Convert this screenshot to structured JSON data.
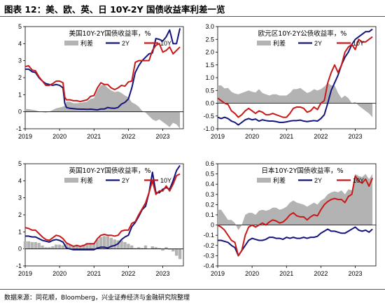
{
  "figure": {
    "title": "图表 12：美、欧、英、日 10Y-2Y 国债收益率利差一览",
    "source": "数据来源：同花顺，Bloomberg，兴业证券经济与金融研究院整理"
  },
  "colors": {
    "spread": "#b3b3b3",
    "y2": "#14147a",
    "y10": "#c81919",
    "axis": "#000000"
  },
  "chart_data": [
    {
      "id": "us",
      "type": "line",
      "title": "美国10Y-2Y国债收益率，%",
      "legend": [
        "利差",
        "2Y",
        "10Y"
      ],
      "x_ticks": [
        "2019",
        "2020",
        "2021",
        "2022",
        "2023"
      ],
      "x_range": [
        2019.0,
        2023.6
      ],
      "ylim": [
        -1,
        5
      ],
      "y_ticks": [
        "-1",
        "0",
        "1",
        "2",
        "3",
        "4",
        "5"
      ],
      "spread_type": "area",
      "x": [
        2019.0,
        2019.1,
        2019.2,
        2019.3,
        2019.4,
        2019.5,
        2019.6,
        2019.7,
        2019.8,
        2019.9,
        2020.0,
        2020.1,
        2020.15,
        2020.2,
        2020.3,
        2020.4,
        2020.5,
        2020.6,
        2020.7,
        2020.8,
        2020.9,
        2021.0,
        2021.1,
        2021.2,
        2021.3,
        2021.4,
        2021.5,
        2021.6,
        2021.7,
        2021.8,
        2021.9,
        2022.0,
        2022.1,
        2022.2,
        2022.3,
        2022.4,
        2022.5,
        2022.6,
        2022.7,
        2022.8,
        2022.9,
        2023.0,
        2023.1,
        2023.2,
        2023.3,
        2023.4,
        2023.5
      ],
      "series": [
        {
          "name": "利差",
          "values": [
            0.17,
            0.15,
            0.12,
            0.08,
            0.02,
            -0.02,
            -0.05,
            0.0,
            0.1,
            0.2,
            0.25,
            0.3,
            0.35,
            0.6,
            0.6,
            0.5,
            0.5,
            0.52,
            0.55,
            0.6,
            0.75,
            0.8,
            1.25,
            1.55,
            1.6,
            1.4,
            1.25,
            1.15,
            1.2,
            1.1,
            0.95,
            0.85,
            0.55,
            0.45,
            0.3,
            0.05,
            -0.05,
            -0.25,
            -0.45,
            -0.55,
            -0.45,
            -0.6,
            -0.75,
            -0.9,
            -0.65,
            -0.75,
            -1.0
          ]
        },
        {
          "name": "2Y",
          "values": [
            2.5,
            2.5,
            2.35,
            2.3,
            2.0,
            1.8,
            1.65,
            1.6,
            1.55,
            1.6,
            1.55,
            1.4,
            0.5,
            0.25,
            0.2,
            0.18,
            0.16,
            0.15,
            0.15,
            0.14,
            0.15,
            0.13,
            0.11,
            0.16,
            0.16,
            0.25,
            0.21,
            0.2,
            0.25,
            0.45,
            0.55,
            0.75,
            1.4,
            2.3,
            2.7,
            3.0,
            3.2,
            3.4,
            3.45,
            4.3,
            4.25,
            4.15,
            4.4,
            4.8,
            4.0,
            4.0,
            4.9
          ]
        },
        {
          "name": "10Y",
          "values": [
            2.65,
            2.7,
            2.45,
            2.4,
            2.05,
            1.8,
            1.55,
            1.55,
            1.65,
            1.8,
            1.8,
            1.7,
            0.85,
            0.7,
            0.7,
            0.65,
            0.65,
            0.6,
            0.65,
            0.7,
            0.9,
            0.95,
            1.4,
            1.7,
            1.6,
            1.6,
            1.4,
            1.3,
            1.4,
            1.55,
            1.5,
            1.75,
            1.8,
            2.9,
            3.0,
            3.0,
            3.0,
            3.0,
            3.6,
            3.9,
            4.0,
            3.5,
            3.6,
            3.8,
            3.4,
            3.6,
            3.8
          ]
        }
      ]
    },
    {
      "id": "eu",
      "type": "line",
      "title": "欧元区10Y-2Y公债收益率，%",
      "legend": [
        "利差",
        "2Y",
        "10Y"
      ],
      "x_ticks": [
        "2019",
        "2020",
        "2021",
        "2022",
        "2023"
      ],
      "x_range": [
        2019.0,
        2023.6
      ],
      "ylim": [
        -1.0,
        3.0
      ],
      "y_ticks": [
        "-1.0",
        "-0.5",
        "0.0",
        "0.5",
        "1.0",
        "1.5",
        "2.0",
        "2.5",
        "3.0"
      ],
      "spread_type": "area",
      "x": [
        2019.0,
        2019.1,
        2019.2,
        2019.3,
        2019.4,
        2019.5,
        2019.6,
        2019.7,
        2019.8,
        2019.9,
        2020.0,
        2020.1,
        2020.2,
        2020.3,
        2020.4,
        2020.5,
        2020.6,
        2020.7,
        2020.8,
        2020.9,
        2021.0,
        2021.1,
        2021.2,
        2021.3,
        2021.4,
        2021.5,
        2021.6,
        2021.7,
        2021.8,
        2021.9,
        2022.0,
        2022.1,
        2022.2,
        2022.3,
        2022.4,
        2022.5,
        2022.6,
        2022.7,
        2022.8,
        2022.9,
        2023.0,
        2023.1,
        2023.2,
        2023.3,
        2023.4,
        2023.5
      ],
      "series": [
        {
          "name": "利差",
          "values": [
            0.7,
            0.7,
            0.58,
            0.6,
            0.45,
            0.38,
            0.35,
            0.4,
            0.45,
            0.5,
            0.45,
            0.42,
            0.55,
            0.4,
            0.35,
            0.3,
            0.35,
            0.35,
            0.3,
            0.3,
            0.3,
            0.4,
            0.55,
            0.55,
            0.6,
            0.5,
            0.4,
            0.45,
            0.55,
            0.5,
            0.55,
            0.65,
            0.8,
            0.7,
            0.7,
            0.4,
            0.2,
            0.3,
            0.2,
            0.0,
            0.05,
            -0.1,
            -0.2,
            -0.3,
            -0.4,
            -0.55
          ]
        },
        {
          "name": "2Y",
          "values": [
            -0.55,
            -0.6,
            -0.55,
            -0.6,
            -0.7,
            -0.75,
            -0.85,
            -0.75,
            -0.65,
            -0.6,
            -0.65,
            -0.62,
            -0.7,
            -0.65,
            -0.68,
            -0.7,
            -0.7,
            -0.72,
            -0.75,
            -0.75,
            -0.73,
            -0.7,
            -0.68,
            -0.68,
            -0.66,
            -0.7,
            -0.72,
            -0.7,
            -0.68,
            -0.7,
            -0.6,
            -0.45,
            0.0,
            0.5,
            0.8,
            1.1,
            1.5,
            1.8,
            2.0,
            2.3,
            2.5,
            2.6,
            2.7,
            2.8,
            2.8,
            2.9
          ]
        },
        {
          "name": "10Y",
          "values": [
            0.2,
            0.1,
            0.0,
            -0.05,
            -0.3,
            -0.4,
            -0.55,
            -0.45,
            -0.3,
            -0.2,
            -0.3,
            -0.4,
            -0.3,
            -0.35,
            -0.45,
            -0.45,
            -0.4,
            -0.45,
            -0.5,
            -0.55,
            -0.55,
            -0.4,
            -0.2,
            -0.15,
            -0.15,
            -0.2,
            -0.35,
            -0.3,
            -0.15,
            -0.25,
            0.0,
            0.1,
            0.8,
            1.2,
            1.5,
            1.2,
            1.5,
            2.0,
            2.2,
            2.3,
            2.1,
            2.5,
            2.4,
            2.4,
            2.5,
            2.6
          ]
        }
      ]
    },
    {
      "id": "uk",
      "type": "line",
      "title": "英国10Y-2Y国债收益率，%",
      "legend": [
        "利差",
        "2Y",
        "10Y"
      ],
      "x_ticks": [
        "2019",
        "2020",
        "2021",
        "2022",
        "2023"
      ],
      "x_range": [
        2019.0,
        2023.6
      ],
      "ylim": [
        -1,
        5
      ],
      "y_ticks": [
        "-1",
        "0",
        "1",
        "2",
        "3",
        "4",
        "5"
      ],
      "spread_type": "bar",
      "x": [
        2019.0,
        2019.1,
        2019.2,
        2019.3,
        2019.4,
        2019.5,
        2019.6,
        2019.7,
        2019.8,
        2019.9,
        2020.0,
        2020.1,
        2020.2,
        2020.3,
        2020.4,
        2020.5,
        2020.6,
        2020.7,
        2020.8,
        2020.9,
        2021.0,
        2021.1,
        2021.2,
        2021.3,
        2021.4,
        2021.5,
        2021.6,
        2021.7,
        2021.8,
        2021.9,
        2022.0,
        2022.1,
        2022.2,
        2022.3,
        2022.4,
        2022.5,
        2022.6,
        2022.7,
        2022.8,
        2022.9,
        2023.0,
        2023.1,
        2023.2,
        2023.3,
        2023.4,
        2023.5
      ],
      "series": [
        {
          "name": "利差",
          "values": [
            0.45,
            0.45,
            0.4,
            0.4,
            0.35,
            0.2,
            0.1,
            0.1,
            0.15,
            0.25,
            0.25,
            0.2,
            0.3,
            0.25,
            0.2,
            0.25,
            0.2,
            0.25,
            0.35,
            0.35,
            0.35,
            0.55,
            0.7,
            0.75,
            0.75,
            0.65,
            0.55,
            0.5,
            0.5,
            0.4,
            0.3,
            0.2,
            0.05,
            0.1,
            0.05,
            0.2,
            0.0,
            0.15,
            0.1,
            0.05,
            -0.1,
            0.1,
            -0.05,
            -0.15,
            -0.4,
            -0.6
          ]
        },
        {
          "name": "2Y",
          "values": [
            0.75,
            0.75,
            0.7,
            0.7,
            0.6,
            0.5,
            0.45,
            0.4,
            0.5,
            0.55,
            0.5,
            0.4,
            0.05,
            0.0,
            -0.05,
            -0.05,
            -0.05,
            -0.05,
            -0.05,
            -0.05,
            -0.05,
            0.05,
            0.1,
            0.1,
            0.05,
            0.15,
            0.2,
            0.3,
            0.55,
            0.7,
            0.8,
            1.3,
            1.55,
            1.9,
            2.3,
            2.5,
            3.3,
            4.5,
            3.3,
            3.3,
            3.5,
            3.6,
            3.5,
            4.0,
            4.6,
            4.9
          ]
        },
        {
          "name": "10Y",
          "values": [
            1.25,
            1.2,
            1.1,
            1.1,
            0.9,
            0.7,
            0.55,
            0.5,
            0.65,
            0.8,
            0.75,
            0.6,
            0.35,
            0.25,
            0.15,
            0.2,
            0.15,
            0.2,
            0.3,
            0.3,
            0.3,
            0.6,
            0.8,
            0.85,
            0.8,
            0.8,
            0.75,
            0.8,
            1.05,
            1.1,
            1.1,
            1.5,
            1.6,
            2.0,
            2.35,
            2.7,
            3.3,
            4.0,
            3.2,
            3.4,
            3.4,
            3.7,
            3.4,
            3.8,
            4.3,
            4.4
          ]
        }
      ]
    },
    {
      "id": "jp",
      "type": "line",
      "title": "日本10Y-2Y国债收益率，%",
      "legend": [
        "利差",
        "2Y",
        "10Y"
      ],
      "x_ticks": [
        "2019",
        "2020",
        "2021",
        "2022",
        "2023"
      ],
      "x_range": [
        2019.0,
        2023.6
      ],
      "ylim": [
        -0.4,
        0.6
      ],
      "y_ticks": [
        "-0.4",
        "-0.3",
        "-0.2",
        "-0.1",
        "0",
        "0.1",
        "0.2",
        "0.3",
        "0.4",
        "0.5",
        "0.6"
      ],
      "spread_type": "area",
      "x": [
        2019.0,
        2019.1,
        2019.2,
        2019.3,
        2019.4,
        2019.5,
        2019.6,
        2019.7,
        2019.8,
        2019.9,
        2020.0,
        2020.1,
        2020.2,
        2020.3,
        2020.4,
        2020.5,
        2020.6,
        2020.7,
        2020.8,
        2020.9,
        2021.0,
        2021.1,
        2021.2,
        2021.3,
        2021.4,
        2021.5,
        2021.6,
        2021.7,
        2021.8,
        2021.9,
        2022.0,
        2022.1,
        2022.2,
        2022.3,
        2022.4,
        2022.5,
        2022.6,
        2022.7,
        2022.8,
        2022.9,
        2023.0,
        2023.1,
        2023.2,
        2023.3,
        2023.4,
        2023.5
      ],
      "series": [
        {
          "name": "利差",
          "values": [
            0.15,
            0.15,
            0.1,
            0.05,
            0.05,
            0.02,
            -0.05,
            0.0,
            0.1,
            0.12,
            0.12,
            0.1,
            0.14,
            0.15,
            0.14,
            0.15,
            0.17,
            0.17,
            0.15,
            0.16,
            0.18,
            0.22,
            0.24,
            0.22,
            0.21,
            0.2,
            0.18,
            0.2,
            0.22,
            0.2,
            0.24,
            0.26,
            0.3,
            0.32,
            0.33,
            0.32,
            0.34,
            0.3,
            0.35,
            0.34,
            0.5,
            0.48,
            0.47,
            0.5,
            0.45,
            0.5
          ]
        },
        {
          "name": "2Y",
          "values": [
            -0.15,
            -0.15,
            -0.16,
            -0.17,
            -0.2,
            -0.22,
            -0.3,
            -0.25,
            -0.2,
            -0.15,
            -0.13,
            -0.14,
            -0.15,
            -0.15,
            -0.14,
            -0.12,
            -0.12,
            -0.13,
            -0.13,
            -0.14,
            -0.12,
            -0.13,
            -0.12,
            -0.13,
            -0.13,
            -0.12,
            -0.13,
            -0.12,
            -0.12,
            -0.11,
            -0.08,
            -0.06,
            -0.04,
            -0.06,
            -0.06,
            -0.07,
            -0.08,
            -0.08,
            -0.06,
            -0.04,
            -0.02,
            -0.05,
            -0.06,
            -0.05,
            -0.07,
            -0.04
          ]
        },
        {
          "name": "10Y",
          "values": [
            0.0,
            -0.02,
            -0.05,
            -0.1,
            -0.15,
            -0.17,
            -0.3,
            -0.25,
            -0.1,
            -0.02,
            0.0,
            -0.02,
            0.0,
            0.02,
            0.0,
            0.03,
            0.05,
            0.04,
            0.02,
            0.03,
            0.06,
            0.1,
            0.12,
            0.09,
            0.08,
            0.08,
            0.05,
            0.08,
            0.1,
            0.09,
            0.15,
            0.2,
            0.23,
            0.25,
            0.26,
            0.25,
            0.25,
            0.22,
            0.28,
            0.3,
            0.48,
            0.43,
            0.41,
            0.45,
            0.38,
            0.46
          ]
        }
      ]
    }
  ]
}
